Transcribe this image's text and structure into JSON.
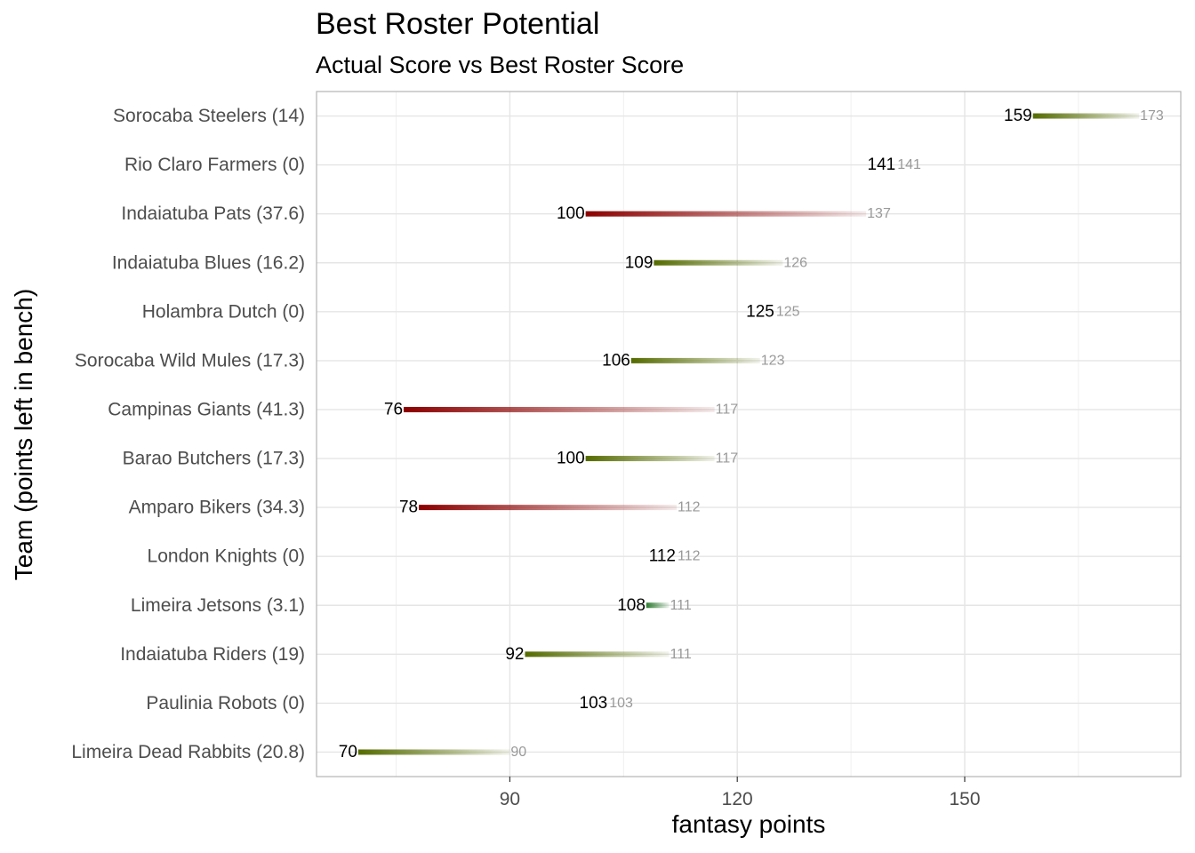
{
  "chart_data": {
    "type": "bar",
    "title": "Best Roster Potential",
    "subtitle": "Actual Score vs Best Roster Score",
    "xlabel": "fantasy points",
    "ylabel": "Team (points left in bench)",
    "xlim": [
      64.5,
      178.5
    ],
    "x_ticks": [
      90,
      120,
      150
    ],
    "grid": true,
    "colors": {
      "loss_large": "#8b0000",
      "loss_medium": "#556b00",
      "loss_small": "#2e7d32",
      "actual_label": "#000000",
      "best_label": "#999999",
      "grid": "#e5e5e5",
      "panel_border": "#b3b3b3",
      "axis_text": "#4d4d4d"
    },
    "categories": [
      "Sorocaba Steelers (14)",
      "Rio Claro Farmers (0)",
      "Indaiatuba Pats (37.6)",
      "Indaiatuba Blues (16.2)",
      "Holambra Dutch (0)",
      "Sorocaba Wild Mules (17.3)",
      "Campinas Giants (41.3)",
      "Barao Butchers (17.3)",
      "Amparo Bikers (34.3)",
      "London Knights (0)",
      "Limeira Jetsons (3.1)",
      "Indaiatuba Riders (19)",
      "Paulinia Robots (0)",
      "Limeira Dead Rabbits (20.8)"
    ],
    "series": [
      {
        "name": "actual",
        "values": [
          159,
          141,
          100,
          109,
          125,
          106,
          76,
          100,
          78,
          112,
          108,
          92,
          103,
          70
        ]
      },
      {
        "name": "best",
        "values": [
          173,
          141,
          137,
          126,
          125,
          123,
          117,
          117,
          112,
          112,
          111,
          111,
          103,
          90
        ]
      }
    ],
    "bench": [
      14,
      0,
      37.6,
      16.2,
      0,
      17.3,
      41.3,
      17.3,
      34.3,
      0,
      3.1,
      19,
      0,
      20.8
    ]
  }
}
